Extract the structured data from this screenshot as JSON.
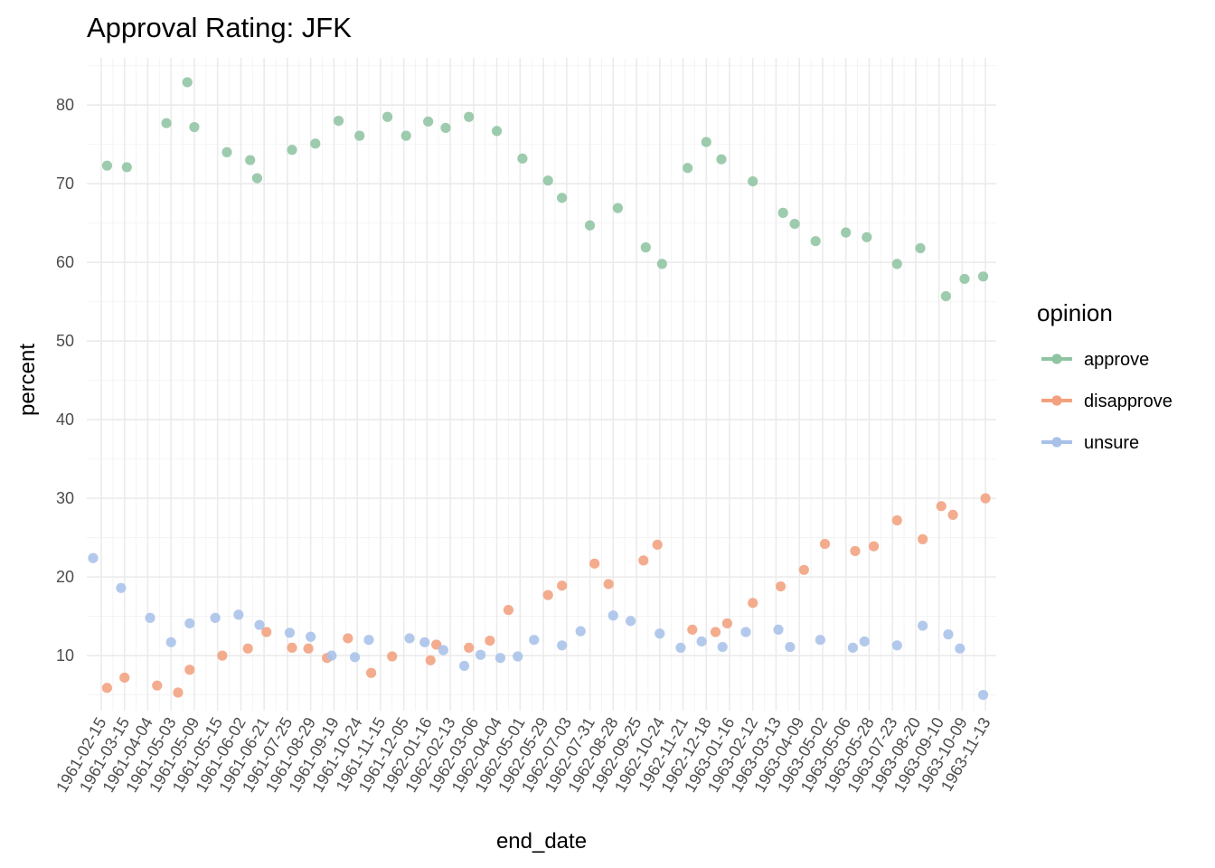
{
  "chart_data": {
    "type": "scatter",
    "title": "Approval Rating: JFK",
    "xlabel": "end_date",
    "ylabel": "percent",
    "ylim": [
      3,
      86
    ],
    "y_ticks": [
      10,
      20,
      30,
      40,
      50,
      60,
      70,
      80
    ],
    "x_tick_labels": [
      "1961-02-15",
      "1961-03-15",
      "1961-04-04",
      "1961-05-03",
      "1961-05-09",
      "1961-05-15",
      "1961-06-02",
      "1961-06-21",
      "1961-07-25",
      "1961-08-29",
      "1961-09-19",
      "1961-10-24",
      "1961-11-15",
      "1961-12-05",
      "1962-01-16",
      "1962-02-13",
      "1962-03-06",
      "1962-04-04",
      "1962-05-01",
      "1962-05-29",
      "1962-07-03",
      "1962-07-31",
      "1962-08-28",
      "1962-09-25",
      "1962-10-24",
      "1962-11-21",
      "1962-12-18",
      "1963-01-16",
      "1963-02-12",
      "1963-03-13",
      "1963-04-09",
      "1963-05-02",
      "1963-05-06",
      "1963-05-28",
      "1963-07-23",
      "1963-08-20",
      "1963-09-10",
      "1963-10-09",
      "1963-11-13"
    ],
    "grid": true,
    "legend": {
      "title": "opinion",
      "position": "right"
    },
    "series": [
      {
        "name": "approve",
        "color": "#8fc4a2",
        "x": [
          0.25,
          1.1,
          2.8,
          3.7,
          4.0,
          5.4,
          6.4,
          6.7,
          8.2,
          9.2,
          10.2,
          11.1,
          12.3,
          13.1,
          14.05,
          14.8,
          15.8,
          17.0,
          18.1,
          19.2,
          19.8,
          21.0,
          22.2,
          23.4,
          24.1,
          25.2,
          26.0,
          26.65,
          28.0,
          29.3,
          29.8,
          30.7,
          32.0,
          32.9,
          34.2,
          35.2,
          36.3,
          37.1,
          37.9
        ],
        "y": [
          72.3,
          72.1,
          77.7,
          82.9,
          77.2,
          74.0,
          73.0,
          70.7,
          74.3,
          75.1,
          78.0,
          76.1,
          78.5,
          76.1,
          77.9,
          77.1,
          78.5,
          76.7,
          73.2,
          70.4,
          68.2,
          64.7,
          66.9,
          61.9,
          59.8,
          72.0,
          75.3,
          73.1,
          70.3,
          66.3,
          64.9,
          62.7,
          63.8,
          63.2,
          59.8,
          61.8,
          55.7,
          57.9,
          58.2
        ]
      },
      {
        "name": "disapprove",
        "color": "#f3a07e",
        "x": [
          0.25,
          1.0,
          2.4,
          3.3,
          3.8,
          5.2,
          6.3,
          7.1,
          8.2,
          8.9,
          9.7,
          10.6,
          11.6,
          12.5,
          14.15,
          14.4,
          15.8,
          16.7,
          17.5,
          19.2,
          19.8,
          21.2,
          21.8,
          23.3,
          23.9,
          25.4,
          26.4,
          26.9,
          28.0,
          29.2,
          30.2,
          31.1,
          32.4,
          33.2,
          34.2,
          35.3,
          36.1,
          36.6,
          38.0
        ],
        "y": [
          5.9,
          7.2,
          6.2,
          5.3,
          8.2,
          10.0,
          10.9,
          13.0,
          11.0,
          10.9,
          9.7,
          12.2,
          7.8,
          9.9,
          9.4,
          11.4,
          11.0,
          11.9,
          15.8,
          17.7,
          18.9,
          21.7,
          19.1,
          22.1,
          24.1,
          13.3,
          13.0,
          14.1,
          16.7,
          18.8,
          20.9,
          24.2,
          23.3,
          23.9,
          27.2,
          24.8,
          29.0,
          27.9,
          30.0
        ]
      },
      {
        "name": "unsure",
        "color": "#a9c1e9",
        "x": [
          -0.35,
          0.85,
          2.1,
          3.0,
          3.8,
          4.9,
          5.9,
          6.8,
          8.1,
          9.0,
          9.9,
          10.9,
          11.5,
          13.25,
          13.9,
          14.7,
          15.6,
          16.3,
          17.15,
          17.9,
          18.6,
          19.8,
          20.6,
          22.0,
          22.75,
          24.0,
          24.9,
          25.8,
          26.7,
          27.7,
          29.1,
          29.6,
          30.9,
          32.3,
          32.8,
          34.2,
          35.3,
          36.4,
          36.9,
          37.9
        ],
        "y": [
          22.4,
          18.6,
          14.8,
          11.7,
          14.1,
          14.8,
          15.2,
          13.9,
          12.9,
          12.4,
          10.0,
          9.8,
          12.0,
          12.2,
          11.7,
          10.7,
          8.7,
          10.1,
          9.7,
          9.9,
          12.0,
          11.3,
          13.1,
          15.1,
          14.4,
          12.8,
          11.0,
          11.8,
          11.1,
          13.0,
          13.3,
          11.1,
          12.0,
          11.0,
          11.8,
          11.3,
          13.8,
          12.7,
          10.9,
          5.0
        ]
      }
    ]
  }
}
